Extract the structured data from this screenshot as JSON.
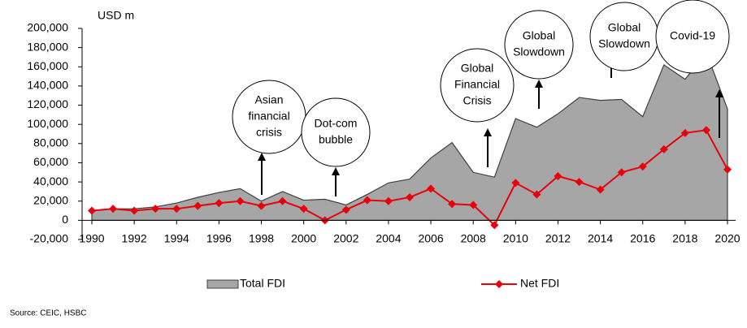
{
  "chart_data": {
    "type": "area_line",
    "y_unit": "USD m",
    "x": [
      1990,
      1991,
      1992,
      1993,
      1994,
      1995,
      1996,
      1997,
      1998,
      1999,
      2000,
      2001,
      2002,
      2003,
      2004,
      2005,
      2006,
      2007,
      2008,
      2009,
      2010,
      2011,
      2012,
      2013,
      2014,
      2015,
      2016,
      2017,
      2018,
      2019,
      2020
    ],
    "series": [
      {
        "name": "Total FDI",
        "type": "area",
        "color": "#a6a6a6",
        "values": [
          10000,
          12000,
          12000,
          14000,
          18000,
          24000,
          29000,
          33000,
          20000,
          30000,
          21000,
          22000,
          16000,
          27000,
          39000,
          43000,
          65000,
          81000,
          50000,
          45000,
          106000,
          97000,
          111000,
          128000,
          125000,
          126000,
          108000,
          162000,
          147000,
          175000,
          116000
        ]
      },
      {
        "name": "Net FDI",
        "type": "line",
        "color": "#e8000b",
        "values": [
          10000,
          12000,
          10000,
          12000,
          12000,
          15000,
          18000,
          20000,
          15000,
          20000,
          12000,
          0,
          11000,
          21000,
          20000,
          24000,
          33000,
          17000,
          16000,
          -5000,
          39000,
          27000,
          46000,
          40000,
          32000,
          50000,
          56000,
          74000,
          91000,
          94000,
          53000
        ]
      }
    ],
    "xlim": [
      1990,
      2020
    ],
    "xticks": [
      1990,
      1992,
      1994,
      1996,
      1998,
      2000,
      2002,
      2004,
      2006,
      2008,
      2010,
      2012,
      2014,
      2016,
      2018,
      2020
    ],
    "ylim": [
      -20000,
      200000
    ],
    "yticks": [
      {
        "value": -20000,
        "label": "-20,000"
      },
      0,
      {
        "value": 20000,
        "label": "20,000"
      },
      {
        "value": 40000,
        "label": "40,000"
      },
      {
        "value": 60000,
        "label": "60,000"
      },
      {
        "value": 80000,
        "label": "80,000"
      },
      {
        "value": 100000,
        "label": "100,000"
      },
      {
        "value": 120000,
        "label": "120,000"
      },
      {
        "value": 140000,
        "label": "140,000"
      },
      {
        "value": 160000,
        "label": "160,000"
      },
      {
        "value": 180000,
        "label": "180,000"
      },
      {
        "value": 200000,
        "label": "200,000"
      }
    ],
    "annotations": [
      {
        "lines": [
          "Asian",
          "financial",
          "crisis"
        ]
      },
      {
        "lines": [
          "Dot-com",
          "bubble"
        ]
      },
      {
        "lines": [
          "Global",
          "Financial",
          "Crisis"
        ]
      },
      {
        "lines": [
          "Global",
          "Slowdown"
        ]
      },
      {
        "lines": [
          "Global",
          "Slowdown"
        ]
      },
      {
        "lines": [
          "Covid-19"
        ]
      }
    ],
    "legend": "bottom",
    "source": "Source: CEIC, HSBC"
  }
}
